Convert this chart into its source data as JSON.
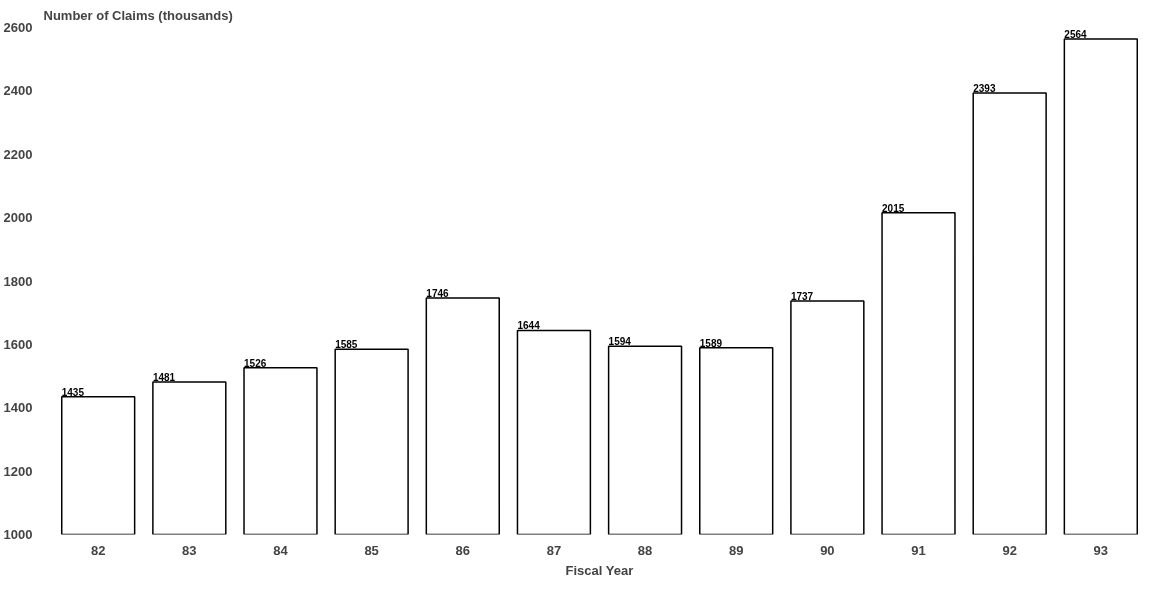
{
  "chart_data": {
    "type": "bar",
    "ylabel": "Number of Claims (thousands)",
    "xlabel": "Fiscal Year",
    "categories": [
      "82",
      "83",
      "84",
      "85",
      "86",
      "87",
      "88",
      "89",
      "90",
      "91",
      "92",
      "93"
    ],
    "values": [
      1435,
      1481,
      1526,
      1585,
      1746,
      1644,
      1594,
      1589,
      1737,
      2015,
      2393,
      2564
    ],
    "color": "#ffffff",
    "ylim": [
      1000,
      2600
    ],
    "yticks": [
      1000,
      1200,
      1400,
      1600,
      1800,
      2000,
      2200,
      2400,
      2600
    ],
    "grid": false,
    "data_labels": true
  }
}
